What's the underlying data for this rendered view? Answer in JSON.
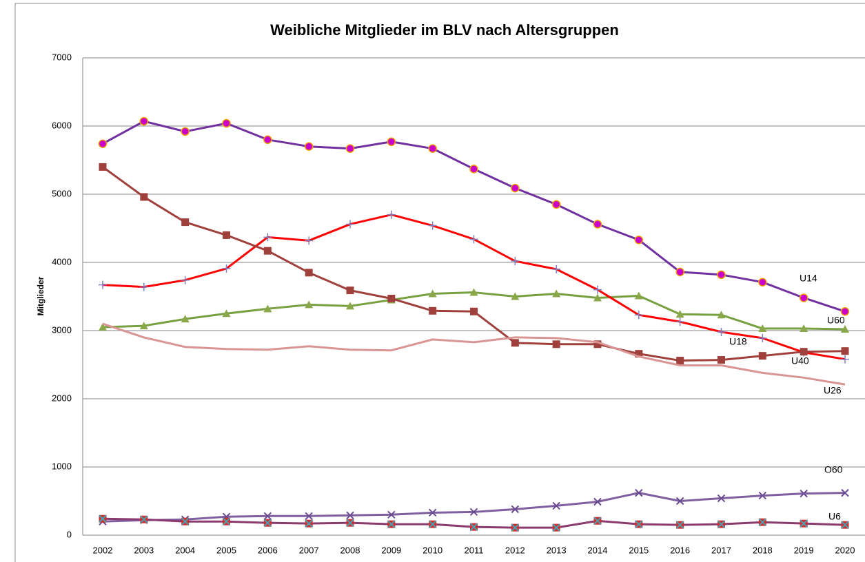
{
  "chart_data": {
    "type": "line",
    "title": "Weibliche Mitglieder im BLV nach Altersgruppen",
    "y_label": "Mitglieder",
    "categories": [
      "2002",
      "2003",
      "2004",
      "2005",
      "2006",
      "2007",
      "2008",
      "2009",
      "2010",
      "2011",
      "2012",
      "2013",
      "2014",
      "2015",
      "2016",
      "2017",
      "2018",
      "2019",
      "2020"
    ],
    "ylim": [
      0,
      7000
    ],
    "yticks": [
      0,
      1000,
      2000,
      3000,
      4000,
      5000,
      6000,
      7000
    ],
    "grid": true,
    "series": [
      {
        "name": "U14",
        "color": "#7030a0",
        "marker": "circle",
        "marker_color": "#cc00cc",
        "marker_edge": "#f0a000",
        "values": [
          5740,
          6070,
          5920,
          6040,
          5800,
          5700,
          5670,
          5770,
          5670,
          5370,
          5090,
          4850,
          4560,
          4330,
          3860,
          3820,
          3710,
          3480,
          3280
        ]
      },
      {
        "name": "U60",
        "color": "#77a040",
        "marker": "triangle",
        "marker_color": "#8aa84a",
        "marker_edge": "#8aa84a",
        "values": [
          3050,
          3070,
          3170,
          3250,
          3320,
          3380,
          3360,
          3450,
          3540,
          3560,
          3500,
          3540,
          3480,
          3510,
          3240,
          3230,
          3030,
          3030,
          3020
        ]
      },
      {
        "name": "U18",
        "color": "#ff0000",
        "marker": "plus",
        "marker_color": "#8080c0",
        "marker_edge": "#8080c0",
        "values": [
          3670,
          3640,
          3740,
          3910,
          4370,
          4320,
          4560,
          4700,
          4540,
          4340,
          4020,
          3900,
          3600,
          3230,
          3130,
          2980,
          2890,
          2680,
          2580
        ]
      },
      {
        "name": "U40",
        "color": "#a0403c",
        "marker": "square",
        "marker_color": "#a0403c",
        "marker_edge": "#a0403c",
        "values": [
          5400,
          4960,
          4590,
          4400,
          4170,
          3850,
          3590,
          3470,
          3290,
          3280,
          2820,
          2800,
          2800,
          2660,
          2560,
          2570,
          2630,
          2690,
          2700
        ]
      },
      {
        "name": "U26",
        "color": "#d99594",
        "marker": "none",
        "values": [
          3100,
          2900,
          2760,
          2730,
          2720,
          2770,
          2720,
          2710,
          2870,
          2830,
          2900,
          2890,
          2830,
          2620,
          2490,
          2490,
          2380,
          2310,
          2210
        ]
      },
      {
        "name": "O60",
        "color": "#7f5fa0",
        "marker": "x",
        "marker_color": "#6a4a90",
        "marker_edge": "#6a4a90",
        "values": [
          200,
          220,
          230,
          270,
          280,
          280,
          290,
          300,
          330,
          340,
          380,
          430,
          490,
          620,
          500,
          540,
          580,
          610,
          620
        ]
      },
      {
        "name": "U6",
        "color": "#8b3a6e",
        "marker": "squarex",
        "marker_color": "#d03030",
        "marker_edge": "#4aa0b0",
        "values": [
          240,
          230,
          200,
          200,
          180,
          170,
          180,
          160,
          160,
          120,
          110,
          110,
          210,
          160,
          150,
          160,
          190,
          170,
          150
        ]
      }
    ]
  }
}
